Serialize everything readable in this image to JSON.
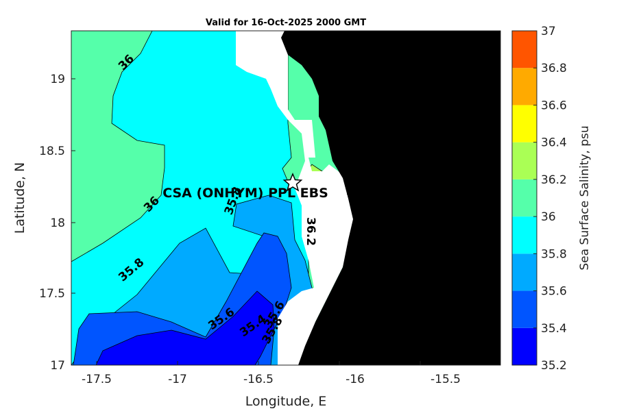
{
  "title": "Valid for 16-Oct-2025 2000 GMT",
  "x_axis": {
    "label": "Longitude, E",
    "ticks": [
      "-17.5",
      "-17",
      "-16.5",
      "-16",
      "-15.5"
    ]
  },
  "y_axis": {
    "label": "Latitude, N",
    "ticks": [
      "19",
      "18.5",
      "18",
      "17.5",
      "17"
    ]
  },
  "colorbar": {
    "label": "Sea Surface Salinity, psu",
    "ticks": [
      "37",
      "36.8",
      "36.6",
      "36.4",
      "36.2",
      "36",
      "35.8",
      "35.6",
      "35.4",
      "35.2"
    ],
    "colors": [
      "#0000ff",
      "#0055ff",
      "#00aaff",
      "#00ffff",
      "#55ffaa",
      "#aaff55",
      "#ffff00",
      "#ffaa00",
      "#ff5500"
    ]
  },
  "contour_labels": [
    "36",
    "36",
    "35.8",
    "35.8",
    "35.6",
    "35.4",
    "35.6",
    "35.8",
    "36.2"
  ],
  "station": {
    "label": "CSA (ONHYM) PPL EBS",
    "marker": "star-icon"
  },
  "land_color": "#000000",
  "nodata_color": "#ffffff"
}
